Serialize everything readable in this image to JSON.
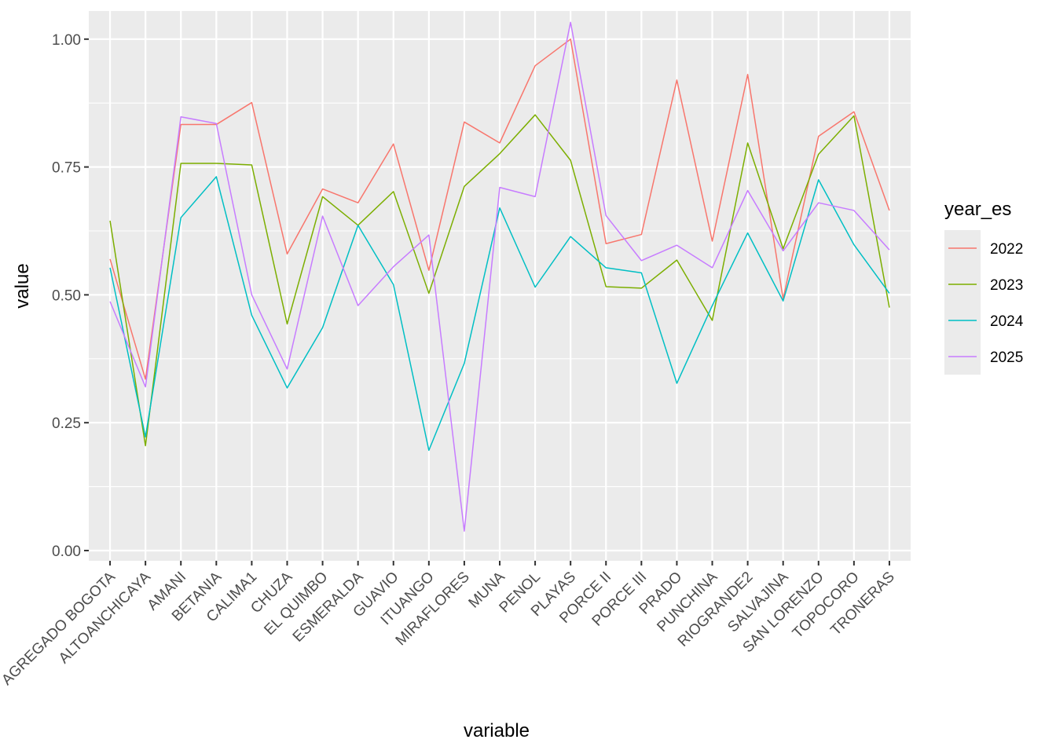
{
  "chart_data": {
    "type": "line",
    "title": "",
    "xlabel": "variable",
    "ylabel": "value",
    "ylim": [
      -0.02,
      1.055
    ],
    "yticks": [
      0.0,
      0.25,
      0.5,
      0.75,
      1.0
    ],
    "ytick_labels": [
      "0.00",
      "0.25",
      "0.50",
      "0.75",
      "1.00"
    ],
    "grid": true,
    "legend": {
      "title": "year_es",
      "position": "right"
    },
    "categories": [
      "AGREGADO BOGOTA",
      "ALTOANCHICAYA",
      "AMANI",
      "BETANIA",
      "CALIMA1",
      "CHUZA",
      "EL QUIMBO",
      "ESMERALDA",
      "GUAVIO",
      "ITUANGO",
      "MIRAFLORES",
      "MUNA",
      "PENOL",
      "PLAYAS",
      "PORCE II",
      "PORCE III",
      "PRADO",
      "PUNCHINA",
      "RIOGRANDE2",
      "SALVAJINA",
      "SAN LORENZO",
      "TOPOCORO",
      "TRONERAS"
    ],
    "series": [
      {
        "name": "2022",
        "color": "#F8766D",
        "values": [
          0.57,
          0.335,
          0.833,
          0.833,
          0.876,
          0.58,
          0.707,
          0.68,
          0.795,
          0.548,
          0.838,
          0.797,
          0.948,
          1.0,
          0.6,
          0.618,
          0.92,
          0.605,
          0.931,
          0.492,
          0.81,
          0.858,
          0.665
        ]
      },
      {
        "name": "2023",
        "color": "#7CAE00",
        "values": [
          0.645,
          0.205,
          0.757,
          0.757,
          0.754,
          0.443,
          0.692,
          0.636,
          0.702,
          0.503,
          0.712,
          0.776,
          0.852,
          0.763,
          0.516,
          0.513,
          0.568,
          0.45,
          0.797,
          0.59,
          0.775,
          0.85,
          0.475
        ]
      },
      {
        "name": "2024",
        "color": "#00BFC4",
        "values": [
          0.553,
          0.222,
          0.651,
          0.731,
          0.46,
          0.318,
          0.436,
          0.636,
          0.52,
          0.196,
          0.366,
          0.67,
          0.515,
          0.614,
          0.553,
          0.543,
          0.327,
          0.479,
          0.621,
          0.488,
          0.725,
          0.598,
          0.503
        ]
      },
      {
        "name": "2025",
        "color": "#C77CFF",
        "values": [
          0.487,
          0.32,
          0.848,
          0.835,
          0.5,
          0.355,
          0.654,
          0.479,
          0.555,
          0.617,
          0.038,
          0.71,
          0.692,
          1.033,
          0.655,
          0.567,
          0.597,
          0.553,
          0.704,
          0.586,
          0.68,
          0.665,
          0.588
        ]
      }
    ]
  }
}
